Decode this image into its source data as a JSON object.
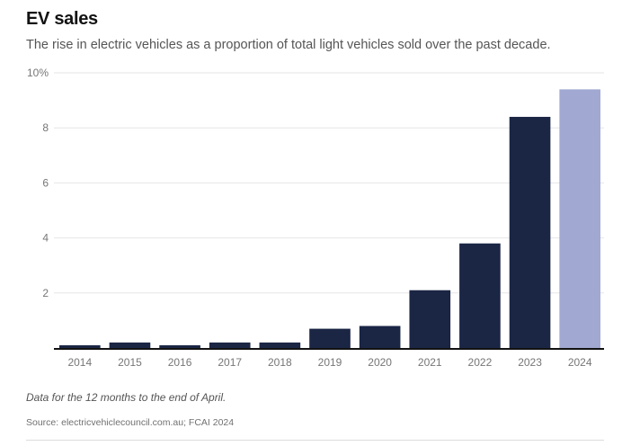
{
  "chart_data": {
    "type": "bar",
    "title": "EV sales",
    "subtitle": "The rise in electric vehicles as a proportion of total light vehicles sold over the past decade.",
    "xlabel": "",
    "ylabel": "",
    "categories": [
      "2014",
      "2015",
      "2016",
      "2017",
      "2018",
      "2019",
      "2020",
      "2021",
      "2022",
      "2023",
      "2024"
    ],
    "values": [
      0.1,
      0.2,
      0.1,
      0.2,
      0.2,
      0.7,
      0.8,
      2.1,
      3.8,
      8.4,
      9.4
    ],
    "highlighted_category": "2024",
    "ylim": [
      0,
      10
    ],
    "yticks": [
      2,
      4,
      6,
      8,
      10
    ],
    "ytick_labels": [
      "2",
      "4",
      "6",
      "8",
      "10%"
    ],
    "grid": true,
    "legend": "none",
    "colors": {
      "bar": "#1b2645",
      "highlight": "#a1a9d2",
      "grid": "#e6e6e6",
      "axis": "#121212"
    },
    "note": "Data for the 12 months to the end of April.",
    "source": "Source: electricvehiclecouncil.com.au; FCAI 2024"
  }
}
